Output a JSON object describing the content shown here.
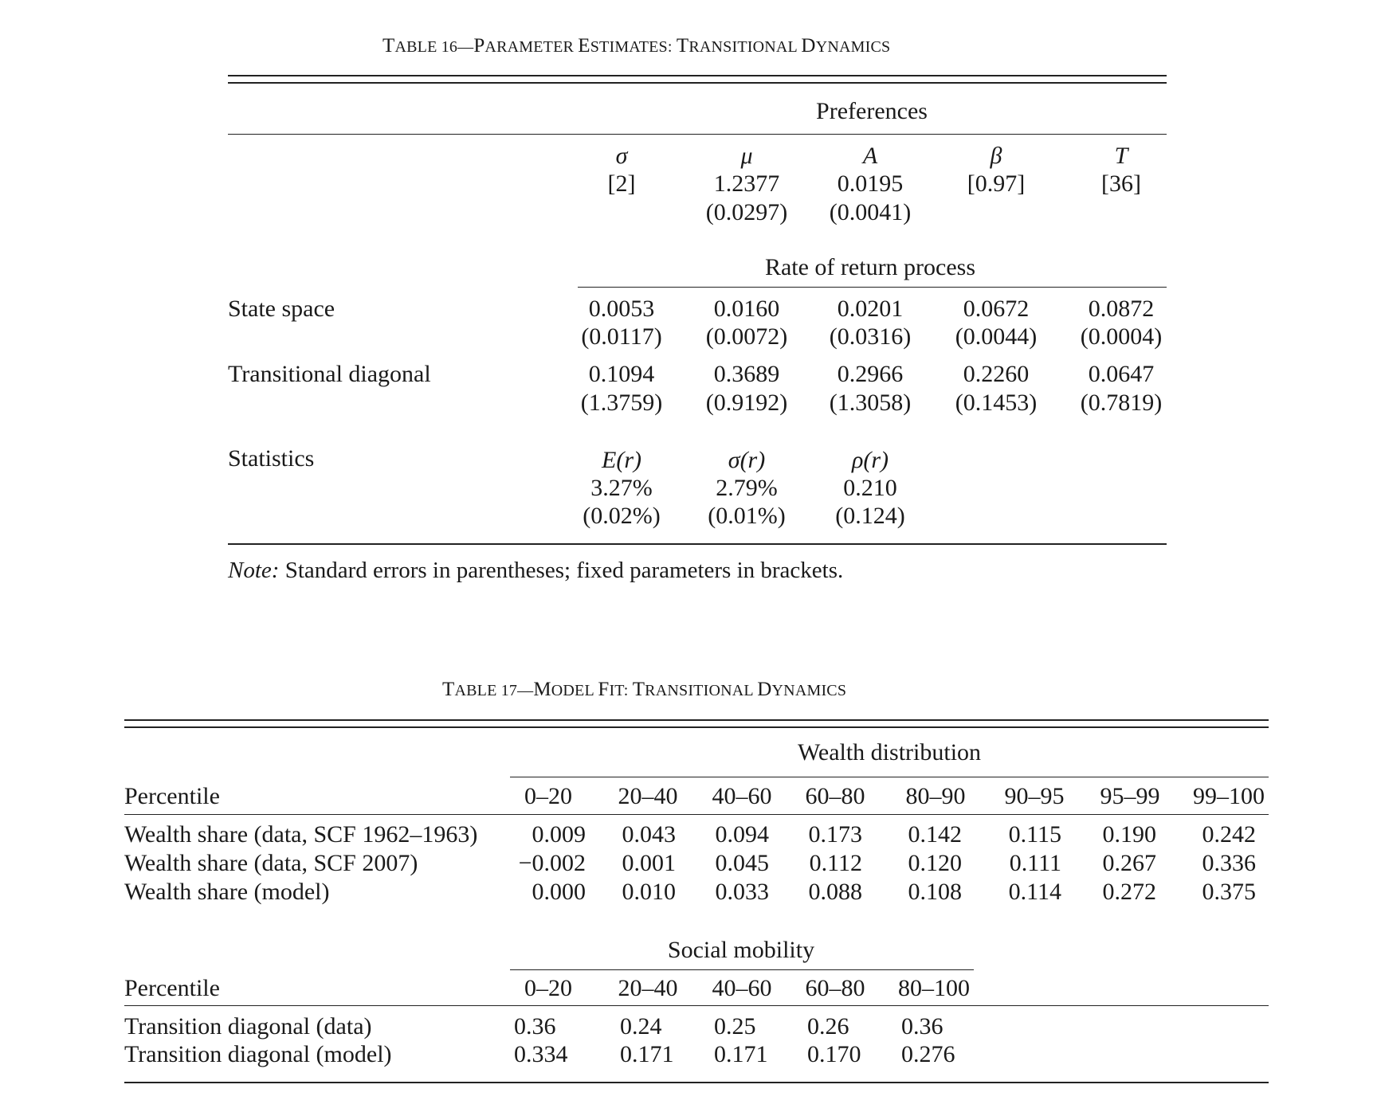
{
  "table16": {
    "title_lead": "T",
    "title_rest": "ABLE 16—",
    "title_cap1": "P",
    "title_word1": "ARAMETER ",
    "title_cap2": "E",
    "title_word2": "STIMATES: ",
    "title_cap3": "T",
    "title_word3": "RANSITIONAL ",
    "title_cap4": "D",
    "title_word4": "YNAMICS",
    "preferences_header": "Preferences",
    "pref_symbols": [
      "σ",
      "μ",
      "A",
      "β",
      "T"
    ],
    "pref_values": [
      "[2]",
      "1.2377",
      "0.0195",
      "[0.97]",
      "[36]"
    ],
    "pref_se": [
      "",
      "(0.0297)",
      "(0.0041)",
      "",
      ""
    ],
    "rate_header": "Rate of return process",
    "rows": [
      {
        "label": "State space",
        "values": [
          "0.0053",
          "0.0160",
          "0.0201",
          "0.0672",
          "0.0872"
        ],
        "se": [
          "(0.0117)",
          "(0.0072)",
          "(0.0316)",
          "(0.0044)",
          "(0.0004)"
        ]
      },
      {
        "label": "Transitional diagonal",
        "values": [
          "0.1094",
          "0.3689",
          "0.2966",
          "0.2260",
          "0.0647"
        ],
        "se": [
          "(1.3759)",
          "(0.9192)",
          "(1.3058)",
          "(0.1453)",
          "(0.7819)"
        ]
      }
    ],
    "statistics_label": "Statistics",
    "stat_names": [
      "E(r)",
      "σ(r)",
      "ρ(r)"
    ],
    "stat_values": [
      "3.27%",
      "2.79%",
      "0.210"
    ],
    "stat_se": [
      "(0.02%)",
      "(0.01%)",
      "(0.124)"
    ],
    "note_label": "Note:",
    "note_text": " Standard errors in parentheses; fixed parameters in brackets."
  },
  "table17": {
    "title_lead": "T",
    "title_rest": "ABLE 17—",
    "title_cap1": "M",
    "title_word1": "ODEL ",
    "title_cap2": "F",
    "title_word2": "IT: ",
    "title_cap3": "T",
    "title_word3": "RANSITIONAL ",
    "title_cap4": "D",
    "title_word4": "YNAMICS",
    "wealth_header": "Wealth distribution",
    "percentile_label": "Percentile",
    "wealth_percentiles": [
      "0–20",
      "20–40",
      "40–60",
      "60–80",
      "80–90",
      "90–95",
      "95–99",
      "99–100"
    ],
    "wealth_rows": [
      {
        "label": "Wealth share (data, SCF 1962–1963)",
        "values": [
          "0.009",
          "0.043",
          "0.094",
          "0.173",
          "0.142",
          "0.115",
          "0.190",
          "0.242"
        ]
      },
      {
        "label": "Wealth share (data, SCF 2007)",
        "values": [
          "−0.002",
          "0.001",
          "0.045",
          "0.112",
          "0.120",
          "0.111",
          "0.267",
          "0.336"
        ]
      },
      {
        "label": "Wealth share (model)",
        "values": [
          "0.000",
          "0.010",
          "0.033",
          "0.088",
          "0.108",
          "0.114",
          "0.272",
          "0.375"
        ]
      }
    ],
    "mobility_header": "Social mobility",
    "mobility_percentile_label": "Percentile",
    "mobility_percentiles": [
      "0–20",
      "20–40",
      "40–60",
      "60–80",
      "80–100"
    ],
    "mobility_rows": [
      {
        "label": "Transition diagonal (data)",
        "values": [
          "0.36",
          "0.24",
          "0.25",
          "0.26",
          "0.36"
        ]
      },
      {
        "label": "Transition diagonal (model)",
        "values": [
          "0.334",
          "0.171",
          "0.171",
          "0.170",
          "0.276"
        ]
      }
    ]
  }
}
